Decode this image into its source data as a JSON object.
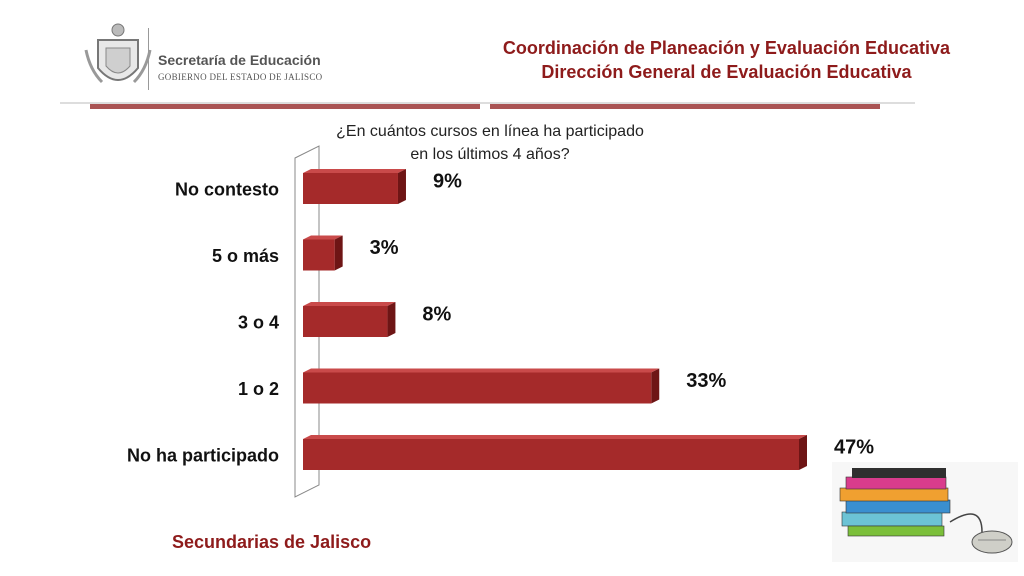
{
  "logo": {
    "line1": "Secretaría de Educación",
    "line2": "GOBIERNO DEL ESTADO DE JALISCO",
    "emblem_icon": "coat-of-arms-icon"
  },
  "header": {
    "line1": "Coordinación de Planeación y Evaluación Educativa",
    "line2": "Dirección General de Evaluación Educativa"
  },
  "footer": {
    "label": "Secundarias de Jalisco"
  },
  "decoration": {
    "books_icon": "books-and-mouse-icon"
  },
  "colors": {
    "bar": "#a52a2a",
    "bar_top": "#c94a4a",
    "bar_side": "#6e1515",
    "header": "#8e1b1b"
  },
  "chart_data": {
    "type": "bar",
    "orientation": "horizontal",
    "title_line1": "¿En cuántos cursos en línea ha participado",
    "title_line2": "en los últimos 4 años?",
    "categories": [
      "No contesto",
      "5 o más",
      "3 o 4",
      "1 o 2",
      "No ha participado"
    ],
    "values": [
      9,
      3,
      8,
      33,
      47
    ],
    "value_labels": [
      "9%",
      "3%",
      "8%",
      "33%",
      "47%"
    ],
    "unit": "%",
    "xlim": [
      0,
      47
    ],
    "grid": false,
    "legend": "none"
  }
}
